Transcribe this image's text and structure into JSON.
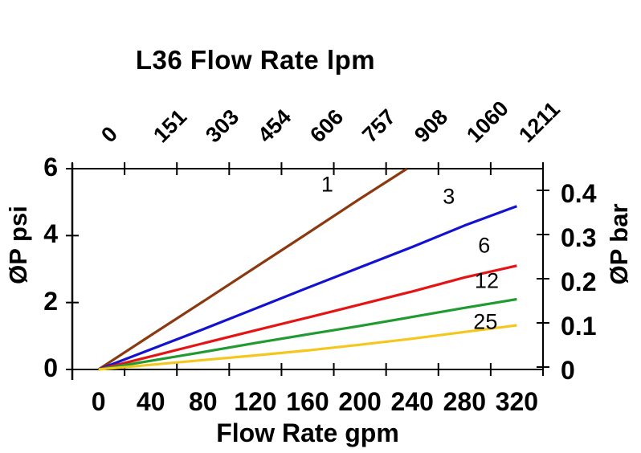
{
  "page": {
    "background": "#ffffff",
    "axis_color": "#000000"
  },
  "chart_data": {
    "type": "line",
    "title": "L36 Flow Rate lpm",
    "top_axis": {
      "unit": "lpm",
      "tick_labels": [
        "0",
        "151",
        "303",
        "454",
        "606",
        "757",
        "908",
        "1060",
        "1211"
      ]
    },
    "bottom_axis": {
      "label": "Flow Rate gpm",
      "tick_labels": [
        "0",
        "40",
        "80",
        "120",
        "160",
        "200",
        "240",
        "280",
        "320"
      ],
      "range_gpm": [
        0,
        320
      ]
    },
    "left_axis": {
      "label": "ØP psi",
      "tick_labels": [
        "0",
        "2",
        "4",
        "6"
      ],
      "tick_values_psi": [
        0,
        2,
        4,
        6
      ],
      "range_psi": [
        0,
        6
      ]
    },
    "right_axis": {
      "label": "ØP bar",
      "tick_labels": [
        "0",
        "0.1",
        "0.2",
        "0.3",
        "0.4"
      ],
      "tick_values_bar": [
        0,
        0.1,
        0.2,
        0.3,
        0.4
      ],
      "range_bar": [
        0,
        0.4
      ]
    },
    "legend_position": "labels-on-lines",
    "grid": false,
    "series": [
      {
        "name": "1",
        "color": "#8b3a10",
        "label_at_gpm_psi": [
          175,
          5.52
        ],
        "points_gpm_psi": [
          [
            0,
            0
          ],
          [
            40,
            1.02
          ],
          [
            80,
            2.03
          ],
          [
            120,
            3.05
          ],
          [
            160,
            4.07
          ],
          [
            200,
            5.1
          ],
          [
            236,
            6.0
          ]
        ]
      },
      {
        "name": "3",
        "color": "#1212cf",
        "label_at_gpm_psi": [
          268,
          5.15
        ],
        "points_gpm_psi": [
          [
            0,
            0
          ],
          [
            40,
            0.6
          ],
          [
            80,
            1.2
          ],
          [
            120,
            1.82
          ],
          [
            160,
            2.44
          ],
          [
            200,
            3.05
          ],
          [
            240,
            3.66
          ],
          [
            280,
            4.3
          ],
          [
            320,
            4.88
          ]
        ]
      },
      {
        "name": "6",
        "color": "#e51414",
        "label_at_gpm_psi": [
          295,
          3.7
        ],
        "points_gpm_psi": [
          [
            0,
            0
          ],
          [
            40,
            0.39
          ],
          [
            80,
            0.78
          ],
          [
            120,
            1.17
          ],
          [
            160,
            1.55
          ],
          [
            200,
            1.94
          ],
          [
            240,
            2.33
          ],
          [
            280,
            2.75
          ],
          [
            320,
            3.1
          ]
        ]
      },
      {
        "name": "12",
        "color": "#1f9b32",
        "label_at_gpm_psi": [
          297,
          2.65
        ],
        "points_gpm_psi": [
          [
            0,
            0
          ],
          [
            40,
            0.26
          ],
          [
            80,
            0.52
          ],
          [
            120,
            0.79
          ],
          [
            160,
            1.05
          ],
          [
            200,
            1.3
          ],
          [
            240,
            1.57
          ],
          [
            280,
            1.84
          ],
          [
            320,
            2.1
          ]
        ]
      },
      {
        "name": "25",
        "color": "#f5c71d",
        "label_at_gpm_psi": [
          296,
          1.41
        ],
        "points_gpm_psi": [
          [
            0,
            0
          ],
          [
            40,
            0.14
          ],
          [
            80,
            0.28
          ],
          [
            120,
            0.42
          ],
          [
            160,
            0.57
          ],
          [
            200,
            0.74
          ],
          [
            240,
            0.92
          ],
          [
            280,
            1.12
          ],
          [
            320,
            1.32
          ]
        ]
      }
    ]
  }
}
